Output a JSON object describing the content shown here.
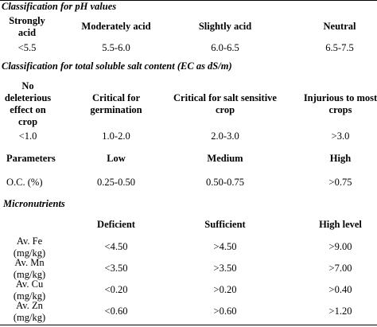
{
  "ph": {
    "title": "Classification for pH values",
    "headers": [
      "Strongly acid",
      "Moderately acid",
      "Slightly acid",
      "Neutral"
    ],
    "values": [
      "<5.5",
      "5.5-6.0",
      "6.0-6.5",
      "6.5-7.5"
    ]
  },
  "salt": {
    "title": "Classification for total soluble salt content (EC as dS/m)",
    "headers": [
      "No deleterious effect on crop",
      "Critical for germination",
      "Critical for salt sensitive crop",
      "Injurious to most crops"
    ],
    "values": [
      "<1.0",
      "1.0-2.0",
      "2.0-3.0",
      ">3.0"
    ]
  },
  "oc": {
    "headers": [
      "Parameters",
      "Low",
      "Medium",
      "High"
    ],
    "row": [
      "O.C. (%)",
      "0.25-0.50",
      "0.50-0.75",
      ">0.75"
    ]
  },
  "micro": {
    "title": "Micronutrients",
    "headers": [
      "Deficient",
      "Sufficient",
      "High level"
    ],
    "rows": [
      {
        "name": "Av. Fe (mg/kg)",
        "values": [
          "<4.50",
          ">4.50",
          ">9.00"
        ]
      },
      {
        "name": "Av. Mn (mg/kg)",
        "values": [
          "<3.50",
          ">3.50",
          ">7.00"
        ]
      },
      {
        "name": "Av. Cu (mg/kg)",
        "values": [
          "<0.20",
          ">0.20",
          ">0.40"
        ]
      },
      {
        "name": "Av. Zn (mg/kg)",
        "values": [
          "<0.60",
          ">0.60",
          ">1.20"
        ]
      }
    ]
  }
}
